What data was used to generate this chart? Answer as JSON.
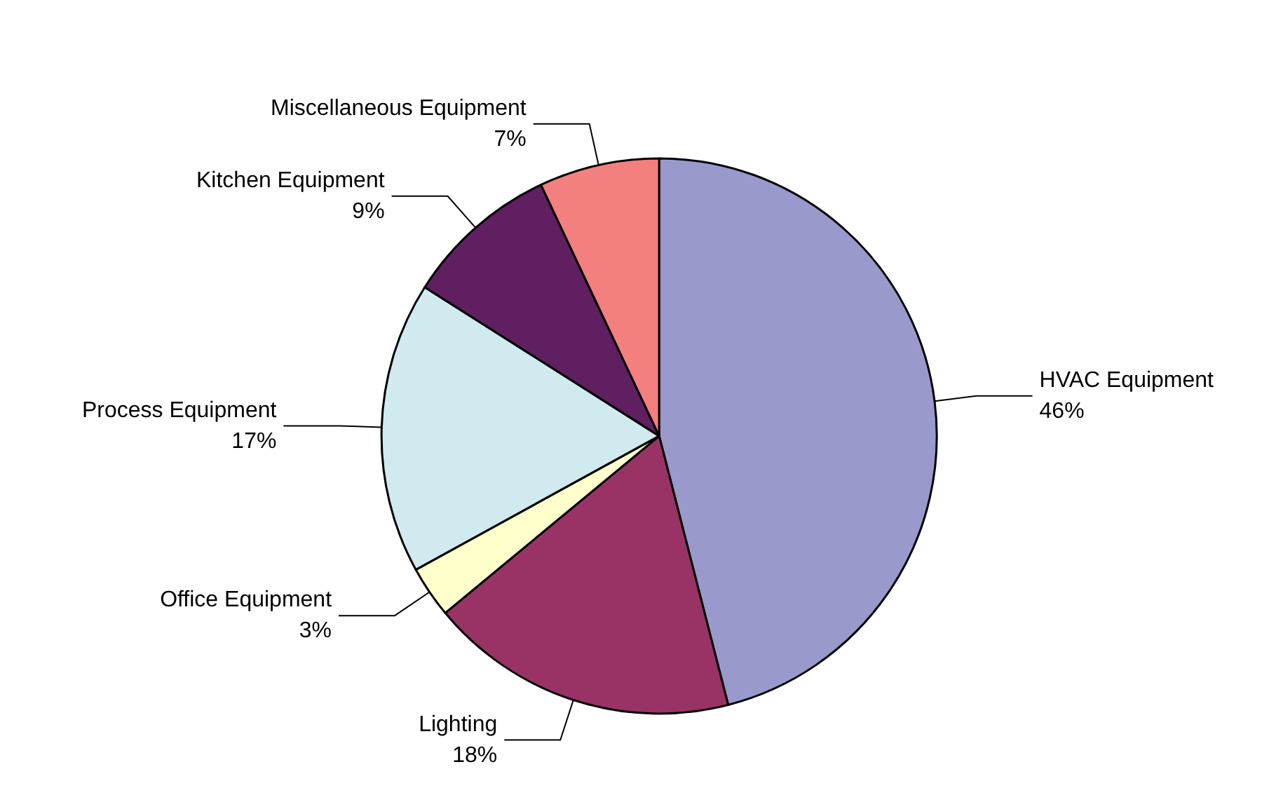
{
  "chart_data": {
    "type": "pie",
    "categories": [
      "HVAC Equipment",
      "Lighting",
      "Office Equipment",
      "Process Equipment",
      "Kitchen Equipment",
      "Miscellaneous Equipment"
    ],
    "values": [
      46,
      18,
      3,
      17,
      9,
      7
    ],
    "colors": [
      "#9999cc",
      "#993366",
      "#ffffcc",
      "#d1eaf0",
      "#5f1f60",
      "#f47f7f"
    ],
    "value_labels": [
      "46%",
      "18%",
      "3%",
      "17%",
      "9%",
      "7%"
    ]
  }
}
